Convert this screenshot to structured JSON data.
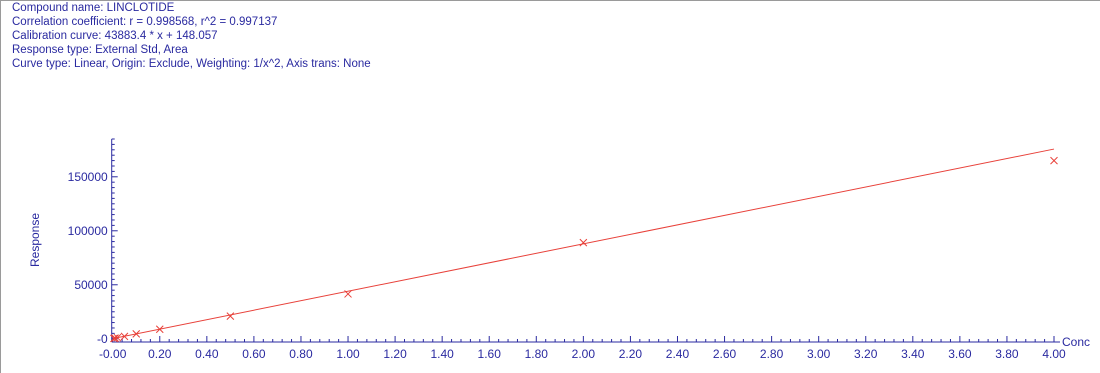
{
  "header": {
    "compound_name": "Compound name: LINCLOTIDE",
    "correlation": "Correlation coefficient: r = 0.998568, r^2 = 0.997137",
    "calibration": "Calibration curve: 43883.4 * x + 148.057",
    "response_type": "Response type: External Std, Area",
    "curve_type": "Curve type: Linear, Origin: Exclude, Weighting: 1/x^2, Axis trans: None"
  },
  "colors": {
    "text": "#2a2aa0",
    "axis": "#2a2aa0",
    "curve": "#e8413a",
    "points": "#e8413a"
  },
  "chart_data": {
    "type": "scatter",
    "xlabel": "Conc",
    "ylabel": "Response",
    "xlim": [
      -0.02,
      4.0
    ],
    "ylim": [
      -3000,
      185000
    ],
    "x_ticks": [
      "-0.00",
      "0.20",
      "0.40",
      "0.60",
      "0.80",
      "1.00",
      "1.20",
      "1.40",
      "1.60",
      "1.80",
      "2.00",
      "2.20",
      "2.40",
      "2.60",
      "2.80",
      "3.00",
      "3.20",
      "3.40",
      "3.60",
      "3.80",
      "4.00"
    ],
    "x_tick_values": [
      0,
      0.2,
      0.4,
      0.6,
      0.8,
      1.0,
      1.2,
      1.4,
      1.6,
      1.8,
      2.0,
      2.2,
      2.4,
      2.6,
      2.8,
      3.0,
      3.2,
      3.4,
      3.6,
      3.8,
      4.0
    ],
    "y_ticks": [
      "-0",
      "50000",
      "100000",
      "150000"
    ],
    "y_tick_values": [
      0,
      50000,
      100000,
      150000
    ],
    "fit": {
      "slope": 43883.4,
      "intercept": 148.057,
      "x_range": [
        0,
        4.0
      ]
    },
    "points": [
      {
        "x": 0.005,
        "y": 300
      },
      {
        "x": 0.01,
        "y": 600
      },
      {
        "x": 0.02,
        "y": 1000
      },
      {
        "x": 0.05,
        "y": 2200
      },
      {
        "x": 0.1,
        "y": 4500
      },
      {
        "x": 0.2,
        "y": 8800
      },
      {
        "x": 0.5,
        "y": 21000
      },
      {
        "x": 1.0,
        "y": 41500
      },
      {
        "x": 2.0,
        "y": 89000
      },
      {
        "x": 4.0,
        "y": 165000
      }
    ],
    "grid": false,
    "legend": "none"
  }
}
